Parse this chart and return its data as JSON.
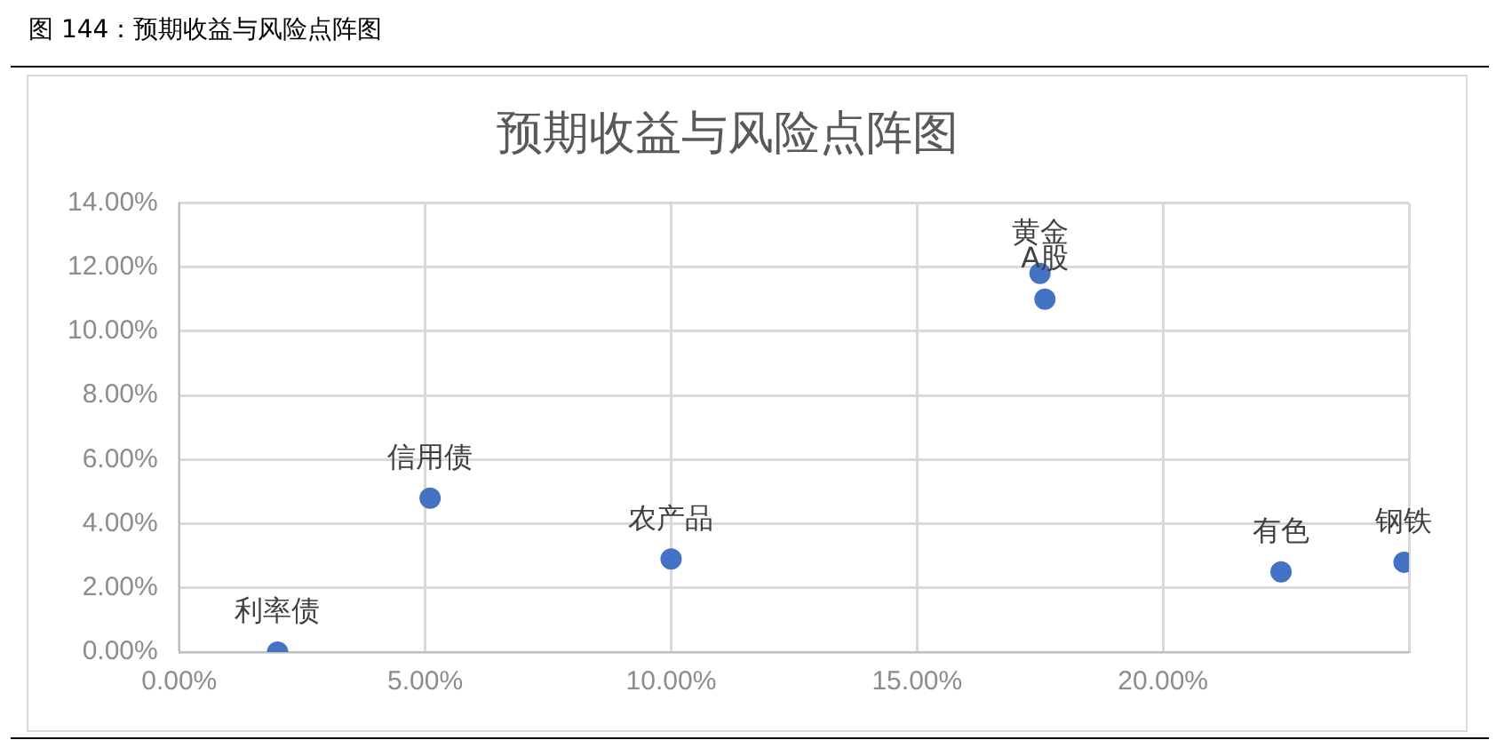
{
  "chart_data": {
    "type": "scatter",
    "title": "预期收益与风险点阵图",
    "annotations": [
      "图 144：预期收益与风险点阵图",
      {
        "text": "利率债",
        "x": 2.0,
        "y": 0
      },
      {
        "text": "信用债",
        "x": 5.1,
        "y": 4.8
      },
      {
        "text": "农产品",
        "x": 10.0,
        "y": 2.9
      },
      {
        "text": "黄金",
        "x": 17.5,
        "y": 11.8
      },
      {
        "text": "A股",
        "x": 17.6,
        "y": 11.0
      },
      {
        "text": "有色",
        "x": 22.4,
        "y": 2.5
      },
      {
        "text": "钢铁",
        "x": 24.9,
        "y": 2.8
      }
    ],
    "x": [
      2.0,
      5.1,
      10.0,
      17.5,
      17.6,
      22.4,
      24.9
    ],
    "series": [
      {
        "color": "#4472c4",
        "values": [
          0,
          4.8,
          2.9,
          11.8,
          11.0,
          2.5,
          2.8
        ]
      }
    ],
    "xlim": [
      0,
      25
    ],
    "xticks": [
      {
        "value": 0,
        "label": "0.00%"
      },
      {
        "value": 5,
        "label": "5.00%"
      },
      {
        "value": 10,
        "label": "10.00%"
      },
      {
        "value": 15,
        "label": "15.00%"
      },
      {
        "value": 20,
        "label": "20.00%"
      },
      {
        "value": 25,
        "label": null
      }
    ],
    "ylim": [
      0,
      14
    ],
    "yticks": [
      {
        "value": 0,
        "label": "0.00%"
      },
      {
        "value": 2,
        "label": "2.00%"
      },
      {
        "value": 4,
        "label": "4.00%"
      },
      {
        "value": 6,
        "label": "6.00%"
      },
      {
        "value": 8,
        "label": "8.00%"
      },
      {
        "value": 10,
        "label": "10.00%"
      },
      {
        "value": 12,
        "label": "12.00%"
      },
      {
        "value": 14,
        "label": "14.00%"
      }
    ],
    "grid": true,
    "legend": false,
    "marker": "circle"
  }
}
